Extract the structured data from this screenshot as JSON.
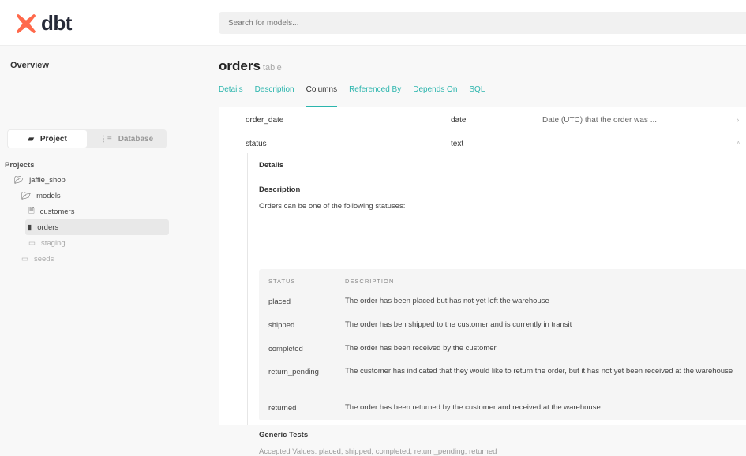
{
  "header": {
    "logo_text": "dbt",
    "search_placeholder": "Search for models..."
  },
  "sidebar": {
    "overview": "Overview",
    "toggle": {
      "project": "Project",
      "database": "Database"
    },
    "projects_label": "Projects",
    "tree": [
      {
        "label": "jaffle_shop",
        "icon": "folder-open-icon",
        "depth": 1
      },
      {
        "label": "models",
        "icon": "folder-open-icon",
        "depth": 2
      },
      {
        "label": "customers",
        "icon": "file-icon",
        "depth": 3
      },
      {
        "label": "orders",
        "icon": "file-filled-icon",
        "depth": 3,
        "selected": true
      },
      {
        "label": "staging",
        "icon": "folder-icon",
        "depth": 3
      },
      {
        "label": "seeds",
        "icon": "folder-icon",
        "depth": 2
      }
    ]
  },
  "main": {
    "title": "orders",
    "subtitle": "table",
    "tabs": [
      "Details",
      "Description",
      "Columns",
      "Referenced By",
      "Depends On",
      "SQL"
    ],
    "active_tab": "Columns",
    "columns": [
      {
        "name": "order_date",
        "type": "date",
        "description": "Date (UTC) that the order was ..."
      },
      {
        "name": "status",
        "type": "text",
        "description": ""
      }
    ],
    "expanded": {
      "details_label": "Details",
      "description_label": "Description",
      "description_text": "Orders can be one of the following statuses:",
      "table_headers": [
        "STATUS",
        "DESCRIPTION"
      ],
      "rows": [
        [
          "placed",
          "The order has been placed but has not yet left the warehouse"
        ],
        [
          "shipped",
          "The order has ben shipped to the customer and is currently in transit"
        ],
        [
          "completed",
          "The order has been received by the customer"
        ],
        [
          "return_pending",
          "The customer has indicated that they would like to return the order, but it has not yet been received at the warehouse"
        ],
        [
          "returned",
          "The order has been returned by the customer and received at the warehouse"
        ]
      ],
      "tests_label": "Generic Tests",
      "tests_text": "Accepted Values: placed, shipped, completed, return_pending, returned"
    }
  },
  "colors": {
    "accent": "#2bb5ad",
    "logo": "#ff694b"
  }
}
